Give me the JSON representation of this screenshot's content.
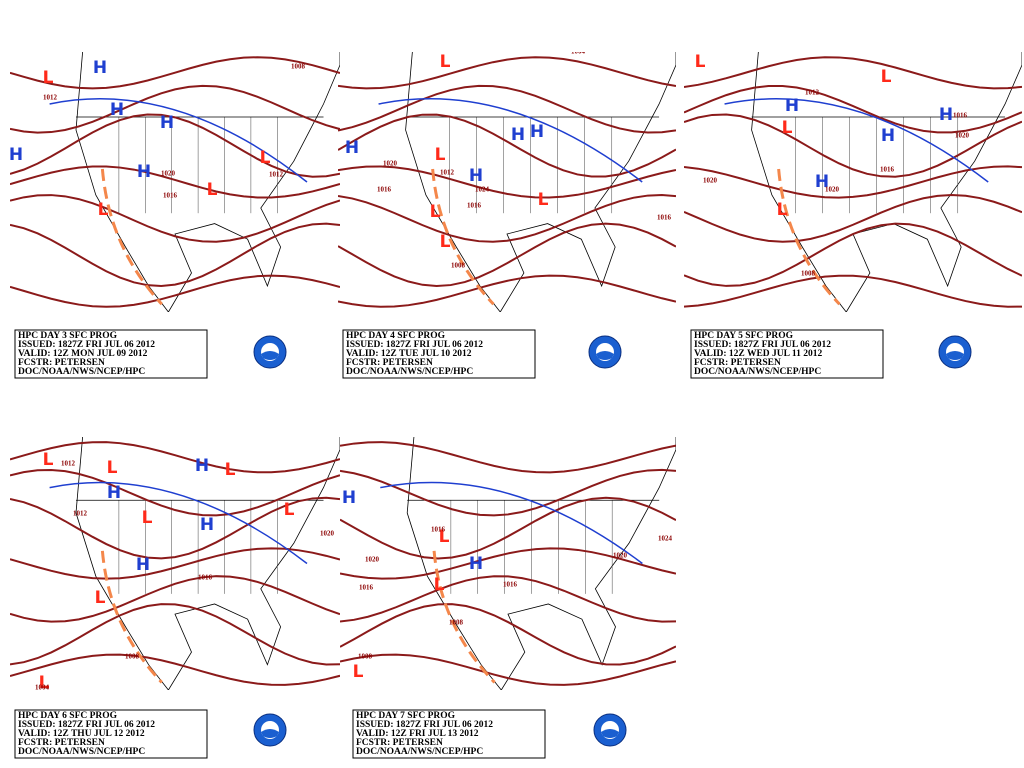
{
  "panels": [
    {
      "caption": [
        "HPC DAY 3 SFC PROG",
        "ISSUED: 1827Z FRI JUL 06 2012",
        "VALID: 12Z MON JUL 09 2012",
        "FCSTR: PETERSEN",
        "DOC/NOAA/NWS/NCEP/HPC"
      ],
      "centers": [
        "L",
        "H",
        "H",
        "H",
        "H",
        "H",
        "L",
        "L",
        "L"
      ],
      "isobars": [
        "1012",
        "1020",
        "1016",
        "1012",
        "1008"
      ]
    },
    {
      "caption": [
        "HPC DAY 4 SFC PROG",
        "ISSUED: 1827Z FRI JUL 06 2012",
        "VALID: 12Z TUE JUL 10 2012",
        "FCSTR: PETERSEN",
        "DOC/NOAA/NWS/NCEP/HPC"
      ],
      "centers": [
        "L",
        "H",
        "H",
        "H",
        "L",
        "H",
        "L",
        "L",
        "L"
      ],
      "isobars": [
        "1008",
        "1004",
        "1020",
        "1012",
        "1016",
        "1024",
        "1016",
        "1008",
        "1016"
      ]
    },
    {
      "caption": [
        "HPC DAY 5 SFC PROG",
        "ISSUED: 1827Z FRI JUL 06 2012",
        "VALID: 12Z WED JUL 11 2012",
        "FCSTR: PETERSEN",
        "DOC/NOAA/NWS/NCEP/HPC"
      ],
      "centers": [
        "L",
        "H",
        "H",
        "H",
        "L",
        "L",
        "H",
        "L"
      ],
      "isobars": [
        "1012",
        "1016",
        "1020",
        "1020",
        "1020",
        "1008",
        "1016"
      ]
    },
    {
      "caption": [
        "HPC DAY 6 SFC PROG",
        "ISSUED: 1827Z FRI JUL 06 2012",
        "VALID: 12Z THU JUL 12 2012",
        "FCSTR: PETERSEN",
        "DOC/NOAA/NWS/NCEP/HPC"
      ],
      "centers": [
        "L",
        "L",
        "H",
        "L",
        "H",
        "L",
        "H",
        "H",
        "L",
        "L",
        "L"
      ],
      "isobars": [
        "1012",
        "1012",
        "1016",
        "1020",
        "1008",
        "1004"
      ]
    },
    {
      "caption": [
        "HPC DAY 7 SFC PROG",
        "ISSUED: 1827Z FRI JUL 06 2012",
        "VALID: 12Z FRI JUL 13 2012",
        "FCSTR: PETERSEN",
        "DOC/NOAA/NWS/NCEP/HPC"
      ],
      "centers": [
        "H",
        "L",
        "H",
        "L",
        "L"
      ],
      "isobars": [
        "1020",
        "1020",
        "1016",
        "1016",
        "1008",
        "1008",
        "1024",
        "1016"
      ]
    }
  ]
}
